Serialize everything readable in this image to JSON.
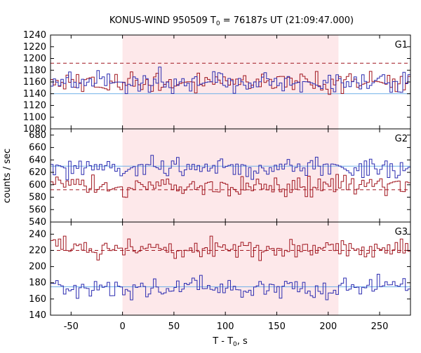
{
  "chart_data": {
    "type": "line",
    "title_main": "KONUS-WIND 950509 T",
    "title_sub": "0",
    "title_rest": " = 76187s UT (21:09:47.000)",
    "xlabel_main": "T - T",
    "xlabel_sub": "0",
    "xlabel_rest": ", s",
    "ylabel": "counts / sec",
    "xlim": [
      -70,
      280
    ],
    "xticks": [
      -50,
      0,
      50,
      100,
      150,
      200,
      250
    ],
    "highlight": {
      "x0": 0,
      "x1": 210,
      "color": "#fde8ea"
    },
    "colors": {
      "red": "#a0151e",
      "blue": "#2b2bb0",
      "light": "#6fb0e8"
    },
    "panels": [
      {
        "label": "G1",
        "ylim": [
          1080,
          1240
        ],
        "yticks": [
          1080,
          1100,
          1120,
          1140,
          1160,
          1180,
          1200,
          1220,
          1240
        ],
        "red_mean": 1158,
        "red_dashed": 1192,
        "blue_mean": 1160,
        "blue_dashed": 1140,
        "seed": 11
      },
      {
        "label": "G2",
        "ylim": [
          540,
          690
        ],
        "yticks": [
          540,
          560,
          580,
          600,
          620,
          640,
          660,
          680
        ],
        "red_mean": 598,
        "red_dashed": 592,
        "blue_mean": 628,
        "blue_dashed": 630,
        "seed": 23
      },
      {
        "label": "G3",
        "ylim": [
          140,
          255
        ],
        "yticks": [
          140,
          160,
          180,
          200,
          220,
          240
        ],
        "red_mean": 222,
        "red_dashed": 220,
        "blue_mean": 174,
        "blue_dashed": 175,
        "seed": 37
      }
    ]
  }
}
